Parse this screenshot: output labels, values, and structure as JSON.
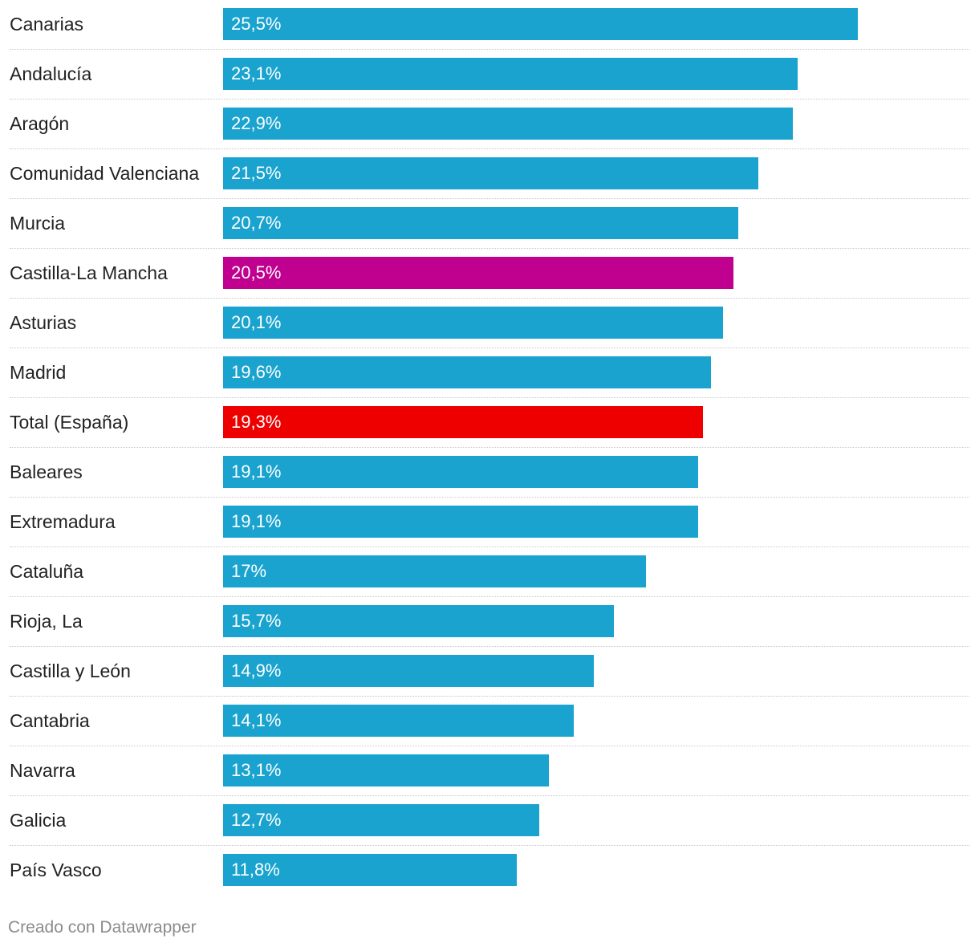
{
  "chart_data": {
    "type": "bar",
    "orientation": "horizontal",
    "categories": [
      "Canarias",
      "Andalucía",
      "Aragón",
      "Comunidad Valenciana",
      "Murcia",
      "Castilla-La Mancha",
      "Asturias",
      "Madrid",
      "Total (España)",
      "Baleares",
      "Extremadura",
      "Cataluña",
      "Rioja, La",
      "Castilla y León",
      "Cantabria",
      "Navarra",
      "Galicia",
      "País Vasco"
    ],
    "values": [
      25.5,
      23.1,
      22.9,
      21.5,
      20.7,
      20.5,
      20.1,
      19.6,
      19.3,
      19.1,
      19.1,
      17,
      15.7,
      14.9,
      14.1,
      13.1,
      12.7,
      11.8
    ],
    "value_labels": [
      "25,5%",
      "23,1%",
      "22,9%",
      "21,5%",
      "20,7%",
      "20,5%",
      "20,1%",
      "19,6%",
      "19,3%",
      "19,1%",
      "19,1%",
      "17%",
      "15,7%",
      "14,9%",
      "14,1%",
      "13,1%",
      "12,7%",
      "11,8%"
    ],
    "bar_colors": [
      "#1aa3ce",
      "#1aa3ce",
      "#1aa3ce",
      "#1aa3ce",
      "#1aa3ce",
      "#c0008f",
      "#1aa3ce",
      "#1aa3ce",
      "#ee0000",
      "#1aa3ce",
      "#1aa3ce",
      "#1aa3ce",
      "#1aa3ce",
      "#1aa3ce",
      "#1aa3ce",
      "#1aa3ce",
      "#1aa3ce",
      "#1aa3ce"
    ],
    "xlim": [
      0,
      30
    ],
    "title": "",
    "xlabel": "",
    "ylabel": ""
  },
  "footer": {
    "credit": "Creado con Datawrapper"
  }
}
